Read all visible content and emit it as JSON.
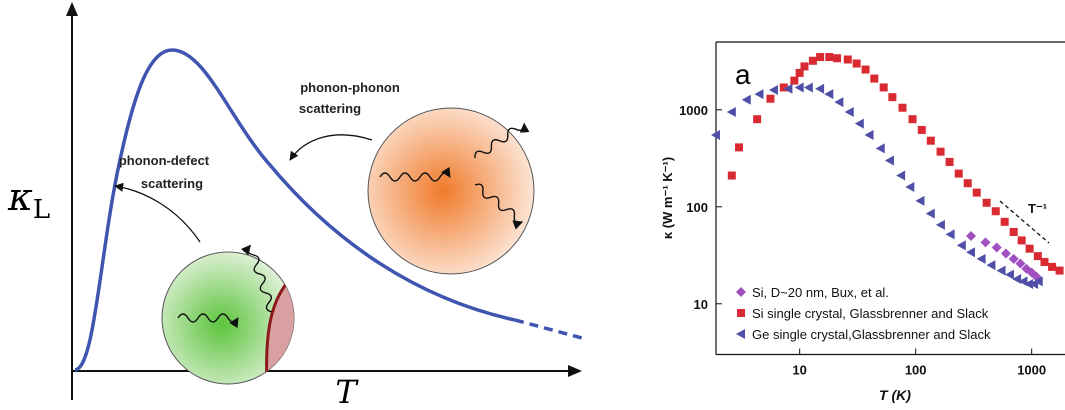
{
  "schematic": {
    "y_label": "κ",
    "y_label_sub": "L",
    "x_label": "T",
    "annotations": [
      [
        "phonon-phonon",
        "scattering"
      ],
      [
        "phonon-defect",
        "scattering"
      ]
    ]
  },
  "chart_data": {
    "type": "scatter",
    "title": "a",
    "x_label": "T (K)",
    "y_label": "κ (W m⁻¹ K⁻¹)",
    "annotation": "T⁻¹",
    "xscale": "log",
    "yscale": "log",
    "xlim": [
      1.9,
      1900
    ],
    "ylim": [
      3,
      5000
    ],
    "xticks": [
      10,
      100,
      1000
    ],
    "yticks": [
      10,
      100,
      1000
    ],
    "legend": "lower left",
    "series": [
      {
        "name": "Si, D~20 nm, Bux, et al.",
        "color": "#a24fc2",
        "marker": "diamond",
        "x": [
          300,
          400,
          500,
          600,
          700,
          800,
          900,
          1000,
          1100
        ],
        "values": [
          50,
          43,
          38,
          33,
          29,
          26,
          23,
          21,
          19
        ]
      },
      {
        "name": "Si single crystal, Glassbrenner and Slack",
        "color": "#d92a32",
        "marker": "square",
        "x": [
          2.6,
          3.0,
          4.3,
          5.6,
          7.3,
          9,
          10,
          11,
          13,
          15,
          18,
          21,
          26,
          31,
          37,
          44,
          53,
          63,
          77,
          94,
          113,
          135,
          164,
          196,
          235,
          281,
          336,
          409,
          490,
          585,
          700,
          820,
          960,
          1130,
          1290,
          1500,
          1740
        ],
        "values": [
          210,
          410,
          800,
          1300,
          1700,
          2000,
          2400,
          2800,
          3200,
          3500,
          3500,
          3400,
          3300,
          3000,
          2600,
          2100,
          1700,
          1350,
          1050,
          800,
          620,
          480,
          370,
          290,
          220,
          175,
          140,
          110,
          90,
          70,
          55,
          45,
          37,
          31,
          27,
          24,
          22
        ]
      },
      {
        "name": "Ge single crystal,Glassbrenner and Slack",
        "color": "#4f4fa8",
        "marker": "triangle",
        "x": [
          1.9,
          2.6,
          3.5,
          4.5,
          6,
          8,
          10,
          12,
          15,
          18,
          22,
          27,
          33,
          40,
          50,
          60,
          75,
          90,
          110,
          135,
          165,
          200,
          250,
          300,
          370,
          450,
          550,
          650,
          750,
          850,
          950,
          1050,
          1150
        ],
        "values": [
          550,
          950,
          1270,
          1450,
          1600,
          1650,
          1700,
          1700,
          1650,
          1450,
          1200,
          950,
          720,
          550,
          400,
          300,
          210,
          160,
          115,
          85,
          65,
          52,
          40,
          34,
          29,
          25,
          22,
          20,
          18,
          17,
          16,
          16,
          17
        ]
      }
    ]
  }
}
